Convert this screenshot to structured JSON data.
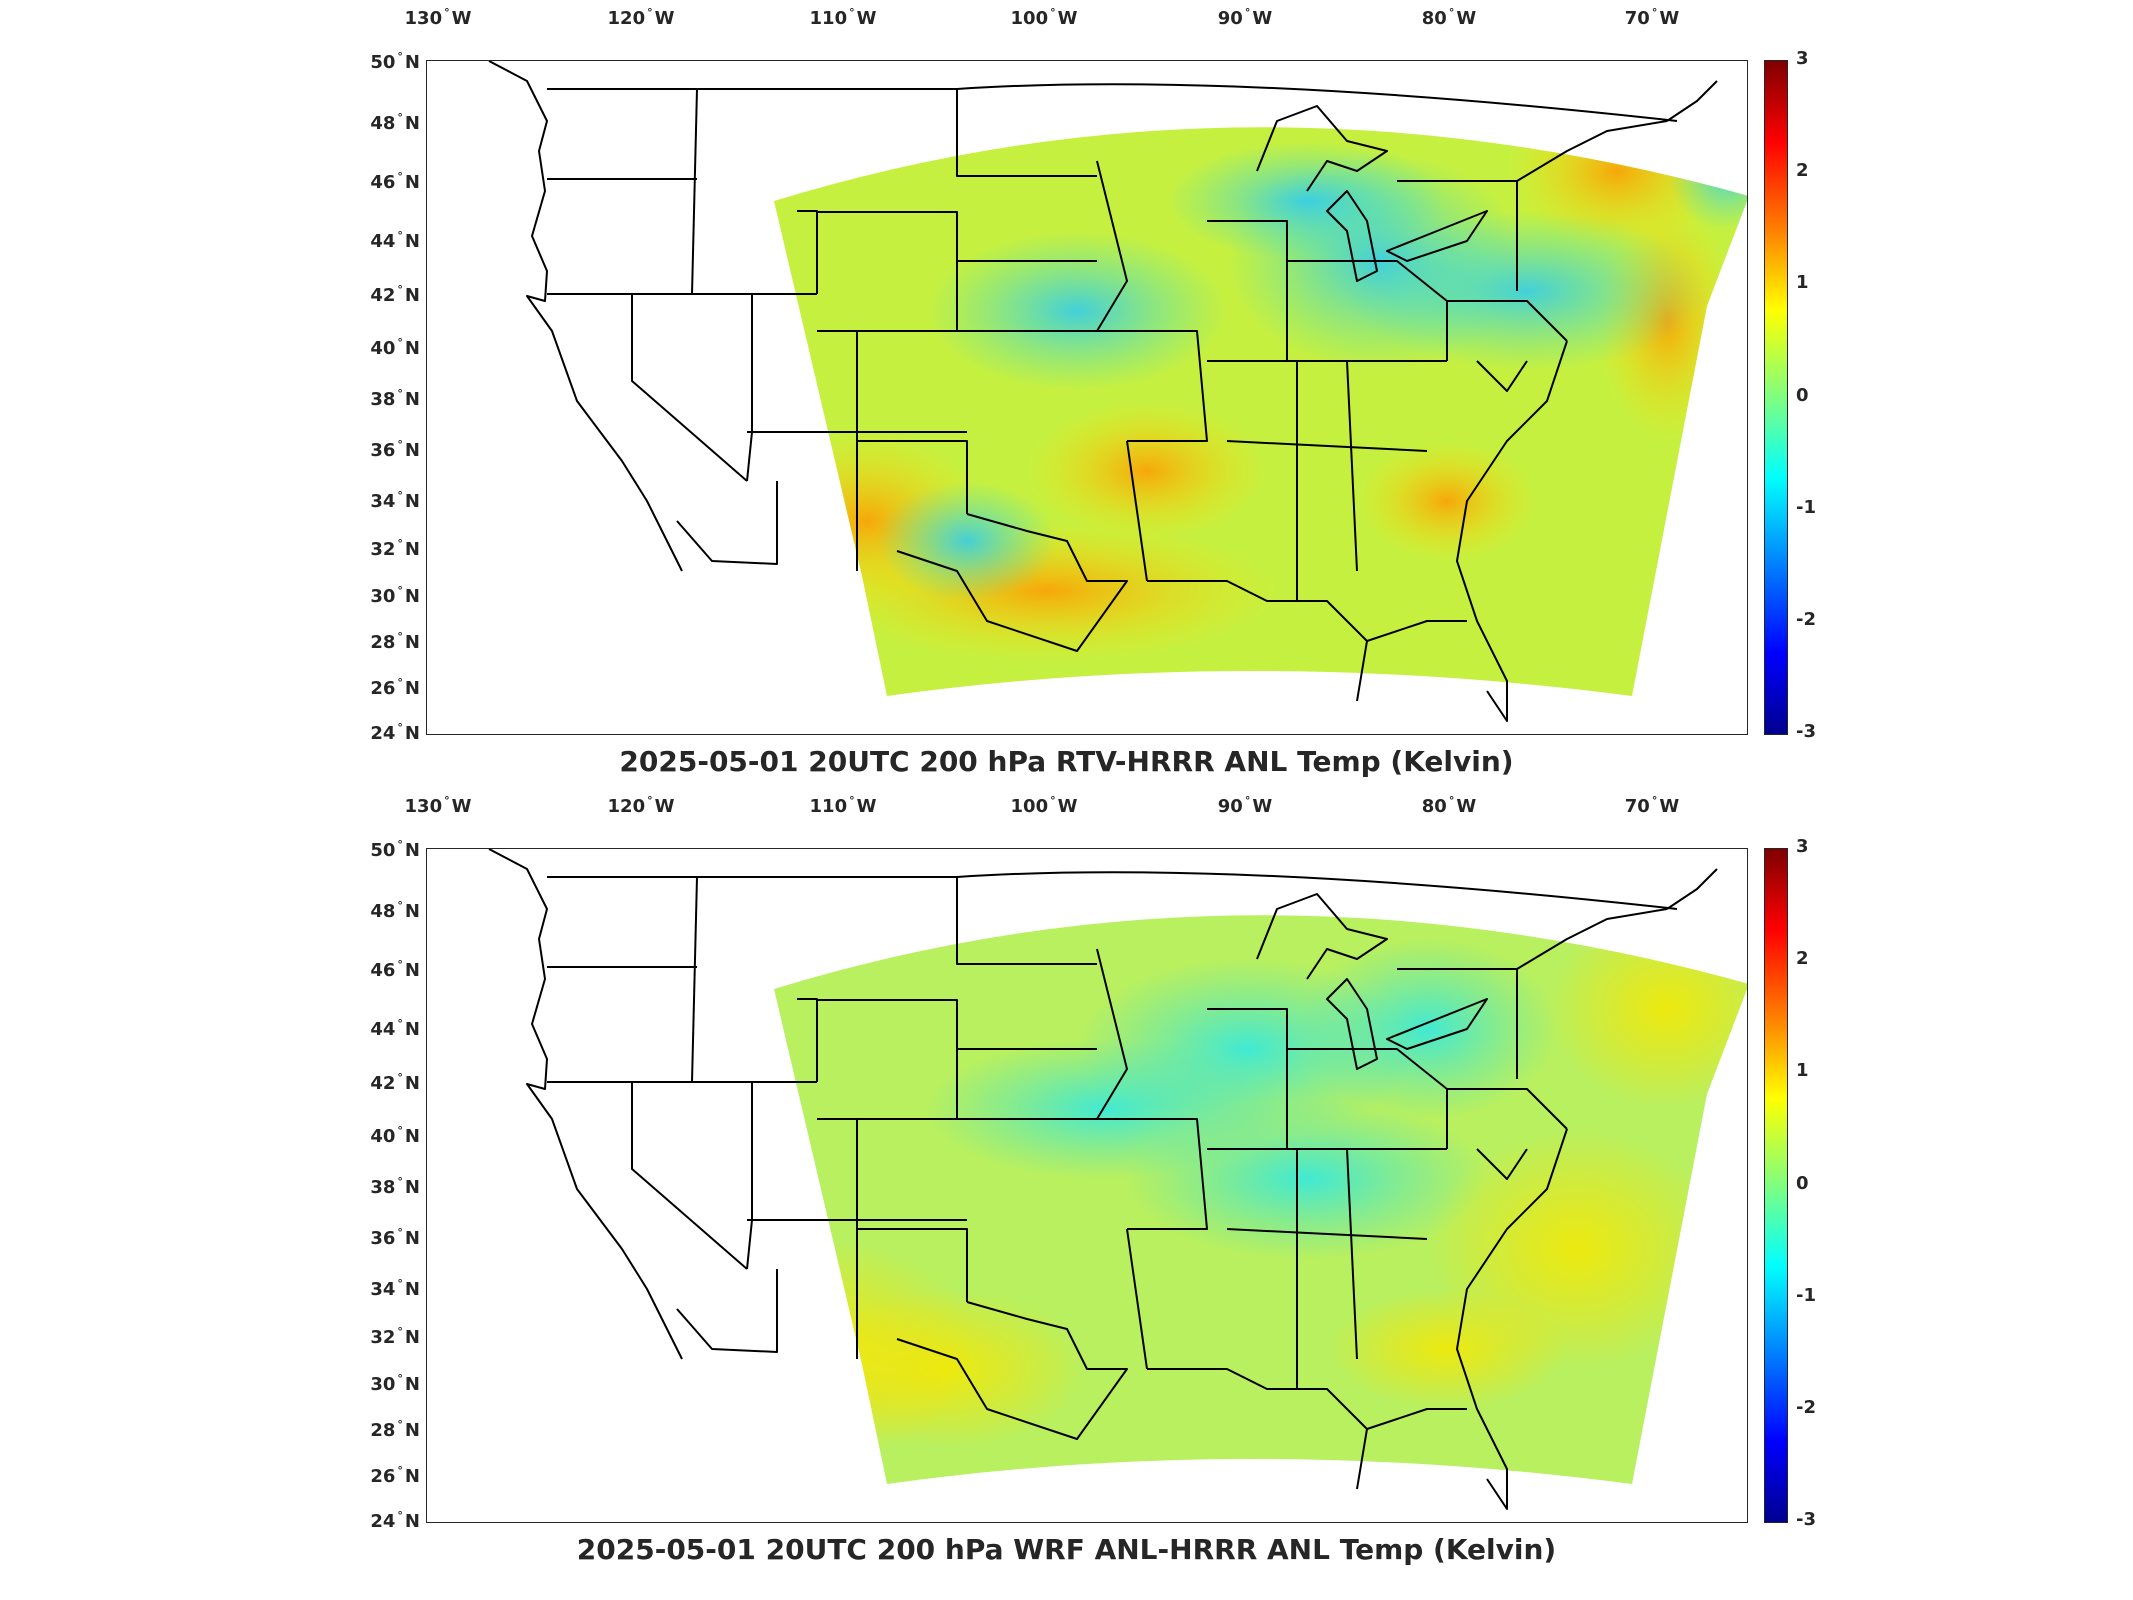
{
  "panels": [
    {
      "id": "top",
      "title": "2025-05-01 20UTC 200 hPa RTV-HRRR ANL Temp (Kelvin)",
      "colorbar": {
        "min": -3,
        "max": 3,
        "ticks": [
          "3",
          "2",
          "1",
          "0",
          "-1",
          "-2",
          "-3"
        ],
        "colormap": "jet"
      },
      "longitude_labels": [
        "130",
        "120",
        "110",
        "100",
        "90",
        "80",
        "70"
      ],
      "latitude_labels": [
        "50",
        "48",
        "46",
        "44",
        "42",
        "40",
        "38",
        "36",
        "34",
        "32",
        "30",
        "28",
        "26",
        "24"
      ],
      "field_tint": "warm"
    },
    {
      "id": "bottom",
      "title": "2025-05-01 20UTC 200 hPa WRF ANL-HRRR ANL Temp (Kelvin)",
      "colorbar": {
        "min": -3,
        "max": 3,
        "ticks": [
          "3",
          "2",
          "1",
          "0",
          "-1",
          "-2",
          "-3"
        ],
        "colormap": "jet"
      },
      "longitude_labels": [
        "130",
        "120",
        "110",
        "100",
        "90",
        "80",
        "70"
      ],
      "latitude_labels": [
        "50",
        "48",
        "46",
        "44",
        "42",
        "40",
        "38",
        "36",
        "34",
        "32",
        "30",
        "28",
        "26",
        "24"
      ],
      "field_tint": "neutral"
    }
  ],
  "units": {
    "lon": "W",
    "lat": "N"
  },
  "colors": {
    "frame": "#262626",
    "state_lines": "#000000",
    "field_base": "#c8f040",
    "field_warm": "#ffd000",
    "field_cool": "#40e0d0"
  }
}
